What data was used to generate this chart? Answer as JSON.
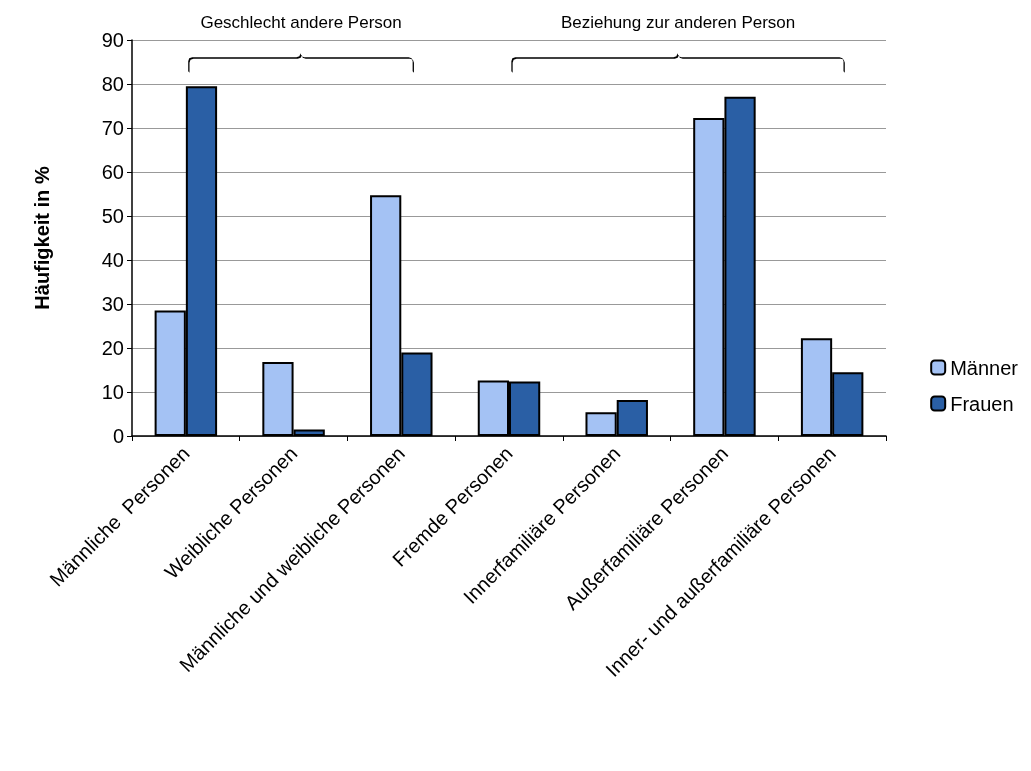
{
  "chart_data": {
    "type": "bar",
    "ylabel": "Häufigkeit in %",
    "annotations": [
      "Geschlecht andere Person",
      "Beziehung zur anderen Person"
    ],
    "categories": [
      "Männliche  Personen",
      "Weibliche Personen",
      "Männliche und weibliche Personen",
      "Fremde Personen",
      "Innerfamiliäre Personen",
      "Außerfamiliäre Personen",
      "Inner- und außerfamiliäre Personen"
    ],
    "series": [
      {
        "name": "Männer",
        "color": "#a4c2f4",
        "values": [
          28.5,
          16.8,
          54.7,
          12.6,
          5.4,
          72.3,
          22.2
        ]
      },
      {
        "name": "Frauen",
        "color": "#2a5fa5",
        "values": [
          79.5,
          1.5,
          19.0,
          12.4,
          8.2,
          77.1,
          14.5
        ]
      }
    ],
    "ylim": [
      0,
      90
    ],
    "yticks": [
      0,
      10,
      20,
      30,
      40,
      50,
      60,
      70,
      80,
      90
    ],
    "grid": "y",
    "legend": "right"
  }
}
